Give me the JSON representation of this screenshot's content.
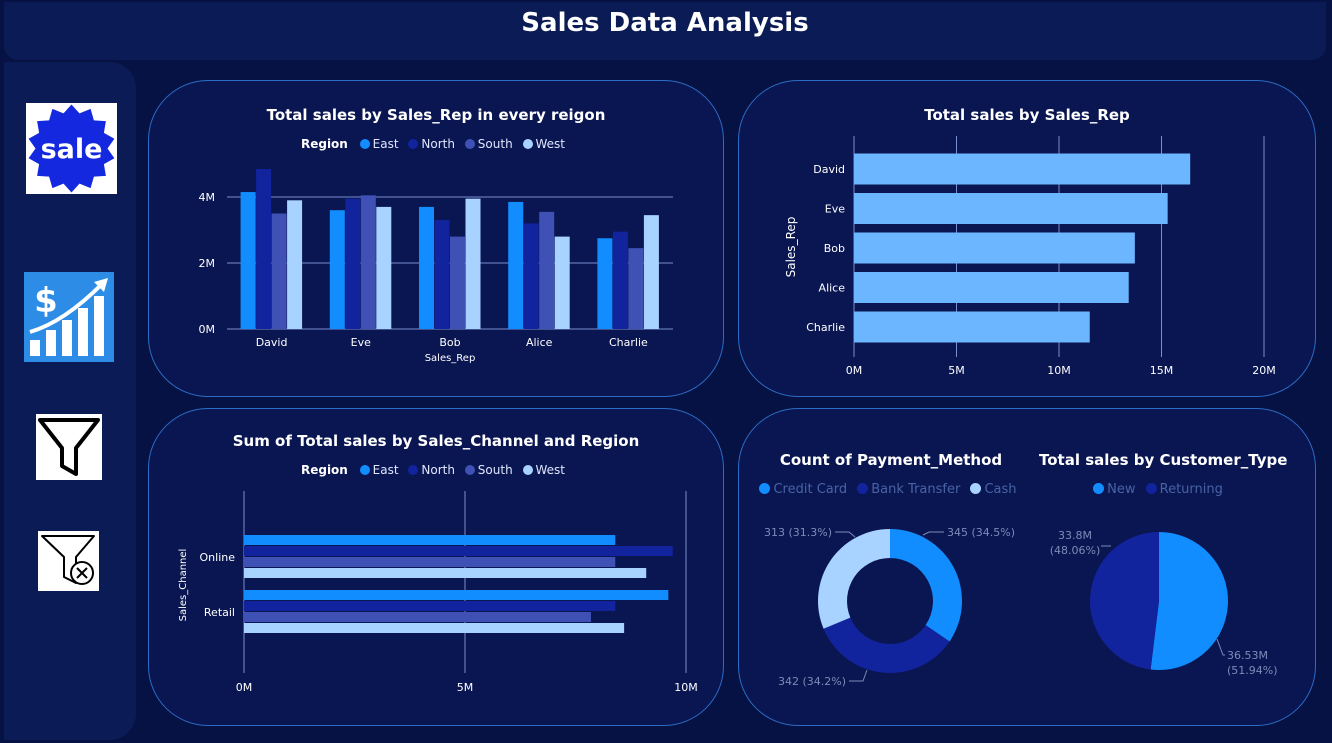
{
  "header": {
    "title": "Sales Data Analysis"
  },
  "sidebar": {
    "sale_icon_text": "sale",
    "icons": [
      "sale-badge-icon",
      "dollar-growth-chart-icon",
      "filter-icon",
      "clear-filter-icon"
    ]
  },
  "colors": {
    "East": "#118dff",
    "North": "#12239e",
    "South": "#3f51b5",
    "West": "#a8d2ff",
    "rep_bar": "#6cb6ff",
    "grid": "#7a8ed0",
    "background": "#061144",
    "card": "#0a1651"
  },
  "chart_data": [
    {
      "id": "rep_region",
      "type": "bar",
      "title": "Total sales by Sales_Rep in every reigon",
      "legend_title": "Region",
      "legend_position": "top",
      "categories": [
        "David",
        "Eve",
        "Bob",
        "Alice",
        "Charlie"
      ],
      "series": [
        {
          "name": "East",
          "values": [
            4.15,
            3.6,
            3.7,
            3.85,
            2.75
          ]
        },
        {
          "name": "North",
          "values": [
            4.85,
            3.95,
            3.3,
            3.2,
            2.95
          ]
        },
        {
          "name": "South",
          "values": [
            3.5,
            4.05,
            2.8,
            3.55,
            2.45
          ]
        },
        {
          "name": "West",
          "values": [
            3.9,
            3.7,
            3.95,
            2.8,
            3.45
          ]
        }
      ],
      "y_ticks": [
        "0M",
        "2M",
        "4M"
      ],
      "ylim": [
        0,
        5
      ],
      "xlabel": "Sales_Rep",
      "ylabel": "",
      "grid": true
    },
    {
      "id": "rep_total",
      "type": "bar",
      "orientation": "horizontal",
      "title": "Total sales by Sales_Rep",
      "categories": [
        "David",
        "Eve",
        "Bob",
        "Alice",
        "Charlie"
      ],
      "values": [
        16.4,
        15.3,
        13.7,
        13.4,
        11.5
      ],
      "x_ticks": [
        "0M",
        "5M",
        "10M",
        "15M",
        "20M"
      ],
      "xlim": [
        0,
        20
      ],
      "ylabel": "Sales_Rep",
      "grid": true
    },
    {
      "id": "channel_region",
      "type": "bar",
      "orientation": "horizontal",
      "title": "Sum of Total sales by Sales_Channel and Region",
      "legend_title": "Region",
      "legend_position": "top",
      "categories": [
        "Online",
        "Retail"
      ],
      "series": [
        {
          "name": "East",
          "values": [
            8.4,
            9.6
          ]
        },
        {
          "name": "North",
          "values": [
            9.7,
            8.4
          ]
        },
        {
          "name": "South",
          "values": [
            8.4,
            7.85
          ]
        },
        {
          "name": "West",
          "values": [
            9.1,
            8.6
          ]
        }
      ],
      "x_ticks": [
        "0M",
        "5M",
        "10M"
      ],
      "xlim": [
        0,
        10
      ],
      "ylabel": "Sales_Channel",
      "grid": true
    },
    {
      "id": "payment_method",
      "type": "pie",
      "variant": "donut",
      "title": "Count of Payment_Method",
      "legend_position": "top",
      "labels": [
        "Credit Card",
        "Bank Transfer",
        "Cash"
      ],
      "values": [
        345,
        342,
        313
      ],
      "data_labels": [
        "345 (34.5%)",
        "342 (34.2%)",
        "313 (31.3%)"
      ]
    },
    {
      "id": "customer_type",
      "type": "pie",
      "title": "Total sales by Customer_Type",
      "legend_position": "top",
      "labels": [
        "New",
        "Returning"
      ],
      "values": [
        36.53,
        33.8
      ],
      "data_labels": [
        [
          "36.53M",
          "(51.94%)"
        ],
        [
          "33.8M",
          "(48.06%)"
        ]
      ]
    }
  ]
}
